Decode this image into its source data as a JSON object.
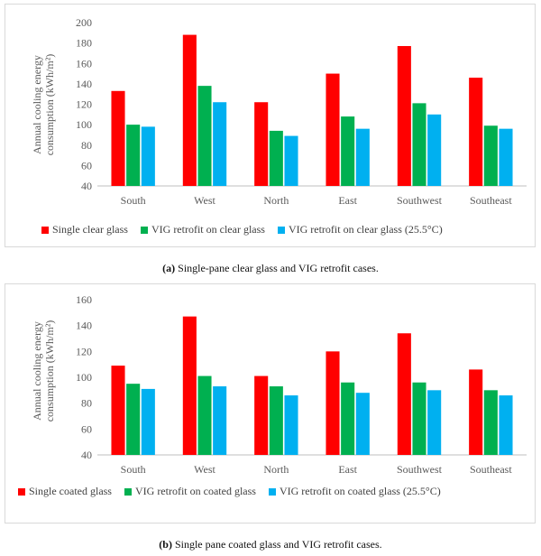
{
  "chart_data": [
    {
      "type": "bar",
      "ylabel_lines": [
        "Annual cooling energy",
        "consumption (kWh/m²)"
      ],
      "ylim": [
        40,
        200
      ],
      "yticks": [
        40,
        60,
        80,
        100,
        120,
        140,
        160,
        180,
        200
      ],
      "categories": [
        "South",
        "West",
        "North",
        "East",
        "Southwest",
        "Southeast"
      ],
      "series": [
        {
          "name": "Single clear glass",
          "color": "#ff0000",
          "values": [
            133,
            188,
            122,
            150,
            177,
            146
          ]
        },
        {
          "name": "VIG retrofit on clear glass",
          "color": "#00b050",
          "values": [
            100,
            138,
            94,
            108,
            121,
            99
          ]
        },
        {
          "name": "VIG retrofit on clear glass (25.5°C)",
          "color": "#00b0f0",
          "values": [
            98,
            122,
            89,
            96,
            110,
            96
          ]
        }
      ],
      "caption_label": "(a)",
      "caption_text": " Single-pane clear glass and VIG retrofit cases.",
      "grid": false,
      "legend_position": "bottom"
    },
    {
      "type": "bar",
      "ylabel_lines": [
        "Annual cooling energy",
        "consumption (kWh/m²)"
      ],
      "ylim": [
        40,
        160
      ],
      "yticks": [
        40,
        60,
        80,
        100,
        120,
        140,
        160
      ],
      "categories": [
        "South",
        "West",
        "North",
        "East",
        "Southwest",
        "Southeast"
      ],
      "series": [
        {
          "name": "Single coated glass",
          "color": "#ff0000",
          "values": [
            109,
            147,
            101,
            120,
            134,
            106
          ]
        },
        {
          "name": "VIG retrofit on coated glass",
          "color": "#00b050",
          "values": [
            95,
            101,
            93,
            96,
            96,
            90
          ]
        },
        {
          "name": "VIG retrofit on coated glass (25.5°C)",
          "color": "#00b0f0",
          "values": [
            91,
            93,
            86,
            88,
            90,
            86
          ]
        }
      ],
      "caption_label": "(b)",
      "caption_text": " Single pane coated glass and VIG retrofit cases.",
      "grid": false,
      "legend_position": "bottom"
    }
  ]
}
